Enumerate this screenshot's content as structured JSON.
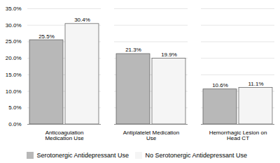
{
  "chart_data": {
    "type": "bar",
    "categories": [
      "Anticoagulation\nMedication Use",
      "Antiplatelet Medication\nUse",
      "Hemorrhagic Lesion on\nHead CT"
    ],
    "series": [
      {
        "name": "Serotonergic Antidepressant Use",
        "color": "#b8b8b8",
        "values": [
          25.5,
          21.3,
          10.6
        ],
        "value_labels": [
          "25.5%",
          "21.3%",
          "10.6%"
        ]
      },
      {
        "name": "No Serotonergic Antidepressant Use",
        "color": "#f5f5f5",
        "values": [
          30.4,
          19.9,
          11.1
        ],
        "value_labels": [
          "30.4%",
          "19.9%",
          "11.1%"
        ]
      }
    ],
    "ylim": [
      0,
      35
    ],
    "yticks": [
      {
        "value": 0,
        "label": "0.0%"
      },
      {
        "value": 5,
        "label": "5.0%"
      },
      {
        "value": 10,
        "label": "10.0%"
      },
      {
        "value": 15,
        "label": "15.0%"
      },
      {
        "value": 20,
        "label": "20.0%"
      },
      {
        "value": 25,
        "label": "25.0%"
      },
      {
        "value": 30,
        "label": "30.0%"
      },
      {
        "value": 35,
        "label": "35.0%"
      }
    ],
    "grid": true,
    "data_labels": true,
    "legend": "bottom"
  }
}
